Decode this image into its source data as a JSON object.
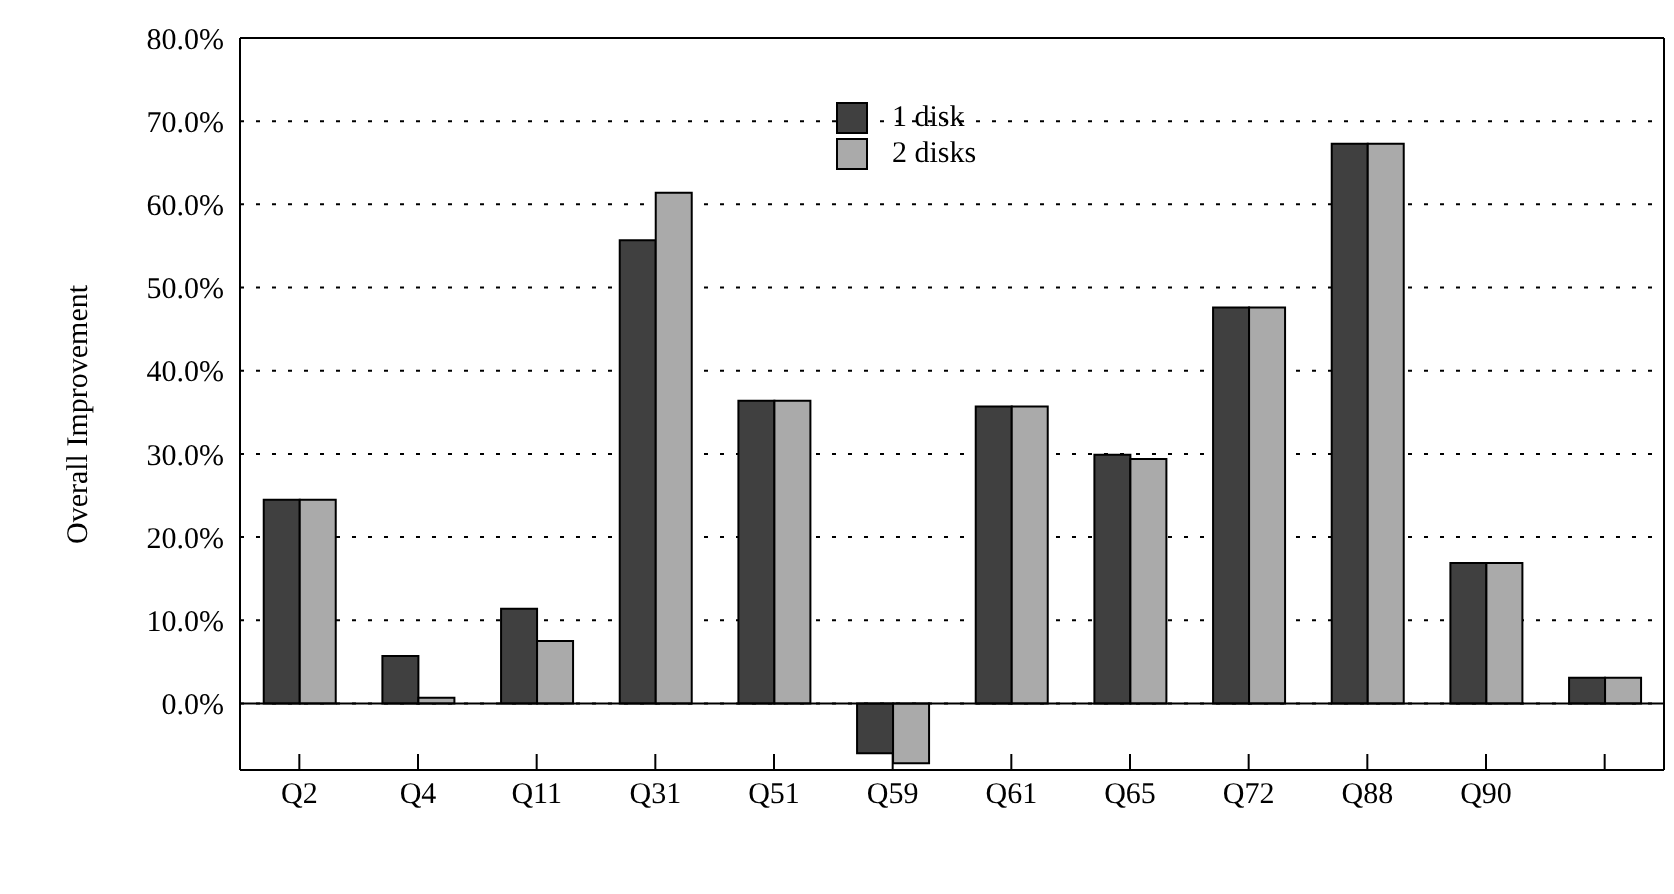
{
  "chart_data": {
    "type": "bar",
    "ylabel": "Overall Improvement",
    "categories": [
      "Q2",
      "Q4",
      "Q11",
      "Q31",
      "Q51",
      "Q59",
      "Q61",
      "Q65",
      "Q72",
      "Q88",
      "Q90",
      null
    ],
    "series": [
      {
        "name": "1 disk",
        "color": "#404040",
        "values": [
          24.5,
          5.7,
          11.4,
          55.7,
          36.4,
          -6.0,
          35.7,
          29.9,
          47.6,
          67.3,
          16.9,
          3.1
        ]
      },
      {
        "name": "2 disks",
        "color": "#aaaaaa",
        "values": [
          24.5,
          0.7,
          7.5,
          61.4,
          36.4,
          -7.2,
          35.7,
          29.4,
          47.6,
          67.3,
          16.9,
          3.1
        ]
      }
    ],
    "ylim": [
      -8,
      80
    ],
    "yticks": [
      {
        "value": 0,
        "label": "0.0%"
      },
      {
        "value": 10,
        "label": "10.0%"
      },
      {
        "value": 20,
        "label": "20.0%"
      },
      {
        "value": 30,
        "label": "30.0%"
      },
      {
        "value": 40,
        "label": "40.0%"
      },
      {
        "value": 50,
        "label": "50.0%"
      },
      {
        "value": 60,
        "label": "60.0%"
      },
      {
        "value": 70,
        "label": "70.0%"
      },
      {
        "value": 80,
        "label": "80.0%"
      }
    ],
    "grid": "y",
    "legend": "top",
    "line_style": "dotted"
  }
}
